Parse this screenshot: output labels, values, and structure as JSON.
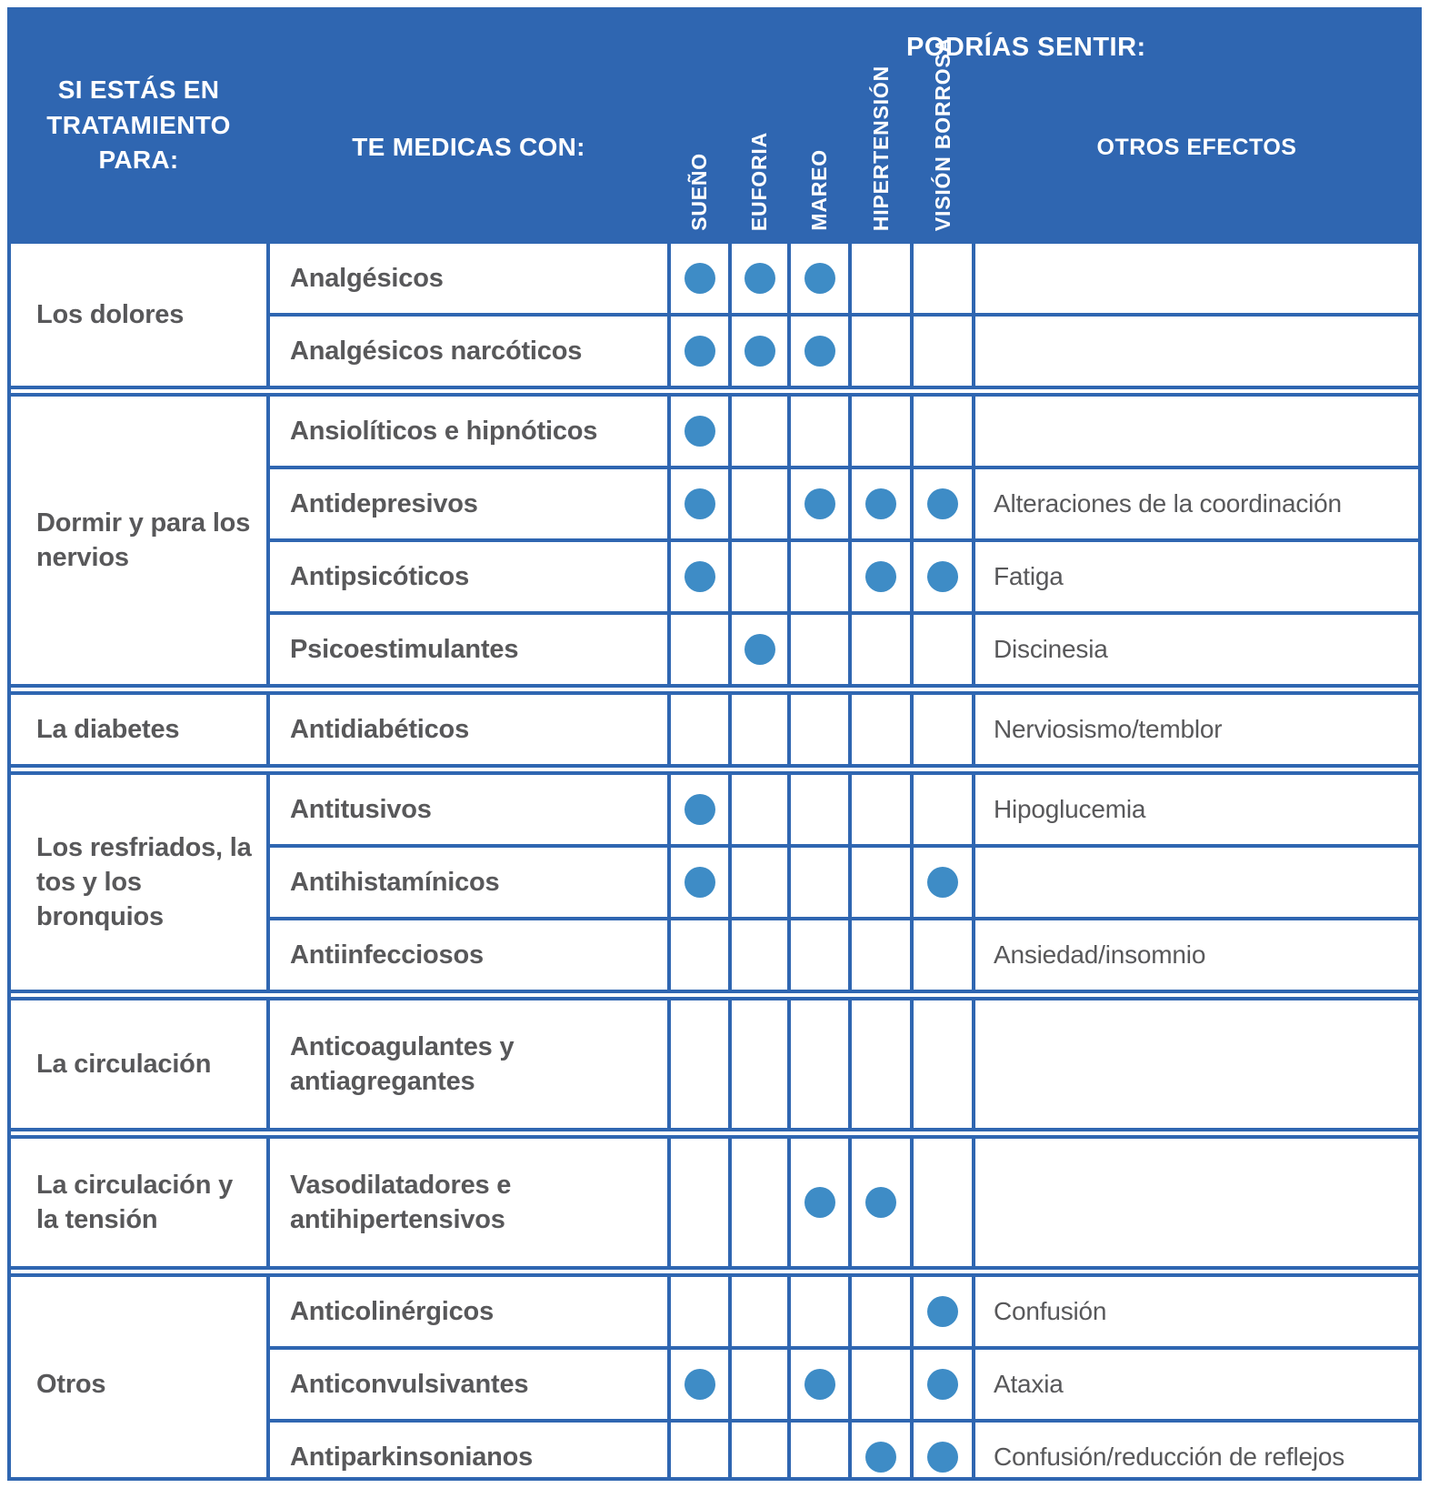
{
  "header": {
    "treatment_label": "SI ESTÁS EN TRATAMIENTO PARA:",
    "medication_label": "TE MEDICAS CON:",
    "feel_label": "PODRÍAS SENTIR:",
    "symptom_columns": [
      "SUEÑO",
      "EUFORIA",
      "MAREO",
      "HIPERTENSIÓN",
      "VISIÓN BORROSA"
    ],
    "other_effects_label": "OTROS EFECTOS"
  },
  "colors": {
    "header_blue": "#2f66b1",
    "dot_blue": "#3e8cc6",
    "text_gray": "#58585a"
  },
  "groups": [
    {
      "treatment": "Los dolores",
      "rows": [
        {
          "medication": "Analgésicos",
          "symptoms": [
            1,
            1,
            1,
            0,
            0
          ],
          "other": ""
        },
        {
          "medication": "Analgésicos narcóticos",
          "symptoms": [
            1,
            1,
            1,
            0,
            0
          ],
          "other": ""
        }
      ]
    },
    {
      "treatment": "Dormir y para los nervios",
      "rows": [
        {
          "medication": "Ansiolíticos e hipnóticos",
          "symptoms": [
            1,
            0,
            0,
            0,
            0
          ],
          "other": ""
        },
        {
          "medication": "Antidepresivos",
          "symptoms": [
            1,
            0,
            1,
            1,
            1
          ],
          "other": "Alteraciones de la coordinación"
        },
        {
          "medication": "Antipsicóticos",
          "symptoms": [
            1,
            0,
            0,
            1,
            1
          ],
          "other": "Fatiga"
        },
        {
          "medication": "Psicoestimulantes",
          "symptoms": [
            0,
            1,
            0,
            0,
            0
          ],
          "other": "Discinesia"
        }
      ]
    },
    {
      "treatment": "La diabetes",
      "rows": [
        {
          "medication": "Antidiabéticos",
          "symptoms": [
            0,
            0,
            0,
            0,
            0
          ],
          "other": "Nerviosismo/temblor"
        }
      ]
    },
    {
      "treatment": "Los resfriados, la tos y los bronquios",
      "rows": [
        {
          "medication": "Antitusivos",
          "symptoms": [
            1,
            0,
            0,
            0,
            0
          ],
          "other": "Hipoglucemia"
        },
        {
          "medication": "Antihistamínicos",
          "symptoms": [
            1,
            0,
            0,
            0,
            1
          ],
          "other": ""
        },
        {
          "medication": "Antiinfecciosos",
          "symptoms": [
            0,
            0,
            0,
            0,
            0
          ],
          "other": "Ansiedad/insomnio"
        }
      ]
    },
    {
      "treatment": "La circulación",
      "rows": [
        {
          "medication": "Anticoagulantes y antiagregantes",
          "symptoms": [
            0,
            0,
            0,
            0,
            0
          ],
          "other": ""
        }
      ]
    },
    {
      "treatment": "La circulación y la tensión",
      "rows": [
        {
          "medication": "Vasodilatadores e antihipertensivos",
          "symptoms": [
            0,
            0,
            1,
            1,
            0
          ],
          "other": ""
        }
      ]
    },
    {
      "treatment": "Otros",
      "rows": [
        {
          "medication": "Anticolinérgicos",
          "symptoms": [
            0,
            0,
            0,
            0,
            1
          ],
          "other": "Confusión"
        },
        {
          "medication": "Anticonvulsivantes",
          "symptoms": [
            1,
            0,
            1,
            0,
            1
          ],
          "other": "Ataxia"
        },
        {
          "medication": "Antiparkinsonianos",
          "symptoms": [
            0,
            0,
            0,
            1,
            1
          ],
          "other": "Confusión/reducción de reflejos"
        }
      ]
    }
  ]
}
